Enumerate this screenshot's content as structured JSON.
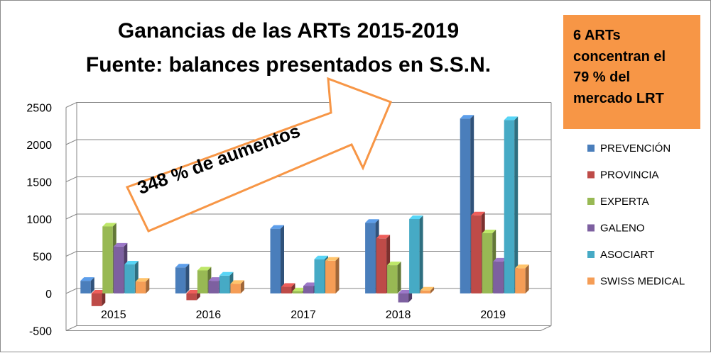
{
  "chart_data": {
    "type": "bar",
    "title": "Ganancias de las ARTs 2015-2019",
    "subtitle": "Fuente: balances presentados en S.S.N.",
    "categories": [
      "2015",
      "2016",
      "2017",
      "2018",
      "2019"
    ],
    "series": [
      {
        "name": "PREVENCIÓN",
        "values": [
          170,
          350,
          870,
          950,
          2350
        ]
      },
      {
        "name": "PROVINCIA",
        "values": [
          -170,
          -90,
          90,
          740,
          1050
        ]
      },
      {
        "name": "EXPERTA",
        "values": [
          900,
          310,
          30,
          380,
          810
        ]
      },
      {
        "name": "GALENO",
        "values": [
          630,
          170,
          100,
          -120,
          430
        ]
      },
      {
        "name": "ASOCIART",
        "values": [
          390,
          240,
          460,
          1000,
          2330
        ]
      },
      {
        "name": "SWISS MEDICAL",
        "values": [
          160,
          130,
          440,
          40,
          340
        ]
      }
    ],
    "ylim": [
      -500,
      2500
    ],
    "yticks": [
      "-500",
      "0",
      "500",
      "1000",
      "1500",
      "2000",
      "2500"
    ],
    "grid": true,
    "legend_position": "right",
    "annotations": {
      "arrow_text": "348 % de aumentos",
      "callout_text": [
        "6 ARTs",
        "concentran el",
        "79 % del",
        "mercado LRT"
      ]
    },
    "colors": {
      "PREVENCIÓN": "#4a7ebb",
      "PROVINCIA": "#be4b48",
      "EXPERTA": "#98b954",
      "GALENO": "#7d60a0",
      "ASOCIART": "#46aac5",
      "SWISS MEDICAL": "#f59d56",
      "callout_bg": "#f79646",
      "arrow_stroke": "#f79646"
    }
  }
}
